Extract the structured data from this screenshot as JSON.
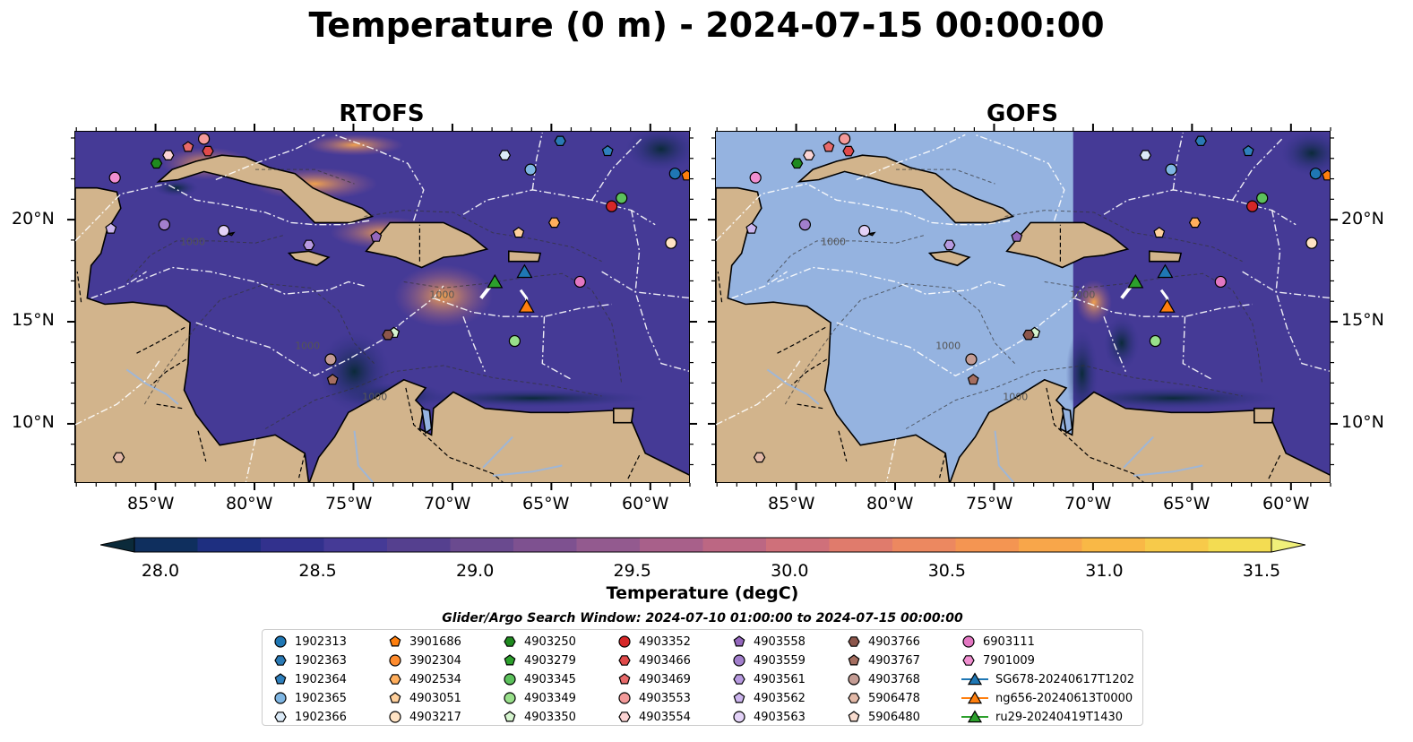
{
  "title": "Temperature (0 m) - 2024-07-15 00:00:00",
  "panels": [
    {
      "title": "RTOFS"
    },
    {
      "title": "GOFS"
    }
  ],
  "axes": {
    "lon_ticks": [
      "85°W",
      "80°W",
      "75°W",
      "70°W",
      "65°W",
      "60°W"
    ],
    "lat_ticks": [
      "20°N",
      "15°N",
      "10°N"
    ]
  },
  "colorbar": {
    "label": "Temperature (degC)",
    "tick_labels": [
      "28.0",
      "28.5",
      "29.0",
      "29.5",
      "30.0",
      "30.5",
      "31.0",
      "31.5"
    ],
    "range": [
      28.0,
      31.5
    ],
    "extend": "both",
    "colors": [
      "#0b2a3a",
      "#0f2f5e",
      "#1e2f80",
      "#32318d",
      "#453a96",
      "#55408f",
      "#6a4a8f",
      "#7e5190",
      "#935a8f",
      "#a8608a",
      "#bc6783",
      "#cf707a",
      "#e07b6c",
      "#ec8860",
      "#f49552",
      "#f8a64a",
      "#f9b846",
      "#f7ca4a",
      "#f3dc52",
      "#f0f07a"
    ]
  },
  "search_window": "Glider/Argo Search Window: 2024-07-10 01:00:00 to 2024-07-15 00:00:00",
  "land_color": "#d2b48c",
  "gofs_nodata_color": "#95b3e0",
  "contours": [
    "1000",
    "1000",
    "1000",
    "1000"
  ],
  "legend": [
    {
      "label": "1902313",
      "marker": "circle",
      "color": "#1f77b4"
    },
    {
      "label": "1902363",
      "marker": "hexagon",
      "color": "#2a7ab5"
    },
    {
      "label": "1902364",
      "marker": "pentagon",
      "color": "#2f80bd"
    },
    {
      "label": "1902365",
      "marker": "circle",
      "color": "#7fb6e3"
    },
    {
      "label": "1902366",
      "marker": "hexagon",
      "color": "#dbeaf7"
    },
    {
      "label": "3901686",
      "marker": "pentagon",
      "color": "#ff7f0e"
    },
    {
      "label": "3902304",
      "marker": "circle",
      "color": "#ff8c2e"
    },
    {
      "label": "4902534",
      "marker": "hexagon",
      "color": "#ffae5c"
    },
    {
      "label": "4903051",
      "marker": "pentagon",
      "color": "#ffd09c"
    },
    {
      "label": "4903217",
      "marker": "circle",
      "color": "#ffe3c4"
    },
    {
      "label": "4903250",
      "marker": "hexagon",
      "color": "#1f8a1f"
    },
    {
      "label": "4903279",
      "marker": "pentagon",
      "color": "#2ca02c"
    },
    {
      "label": "4903345",
      "marker": "circle",
      "color": "#5cc15c"
    },
    {
      "label": "4903349",
      "marker": "circle",
      "color": "#98df8a"
    },
    {
      "label": "4903350",
      "marker": "pentagon",
      "color": "#d6f5cf"
    },
    {
      "label": "4903352",
      "marker": "circle",
      "color": "#d62728"
    },
    {
      "label": "4903466",
      "marker": "hexagon",
      "color": "#e04a4a"
    },
    {
      "label": "4903469",
      "marker": "pentagon",
      "color": "#e86a6a"
    },
    {
      "label": "4903553",
      "marker": "circle",
      "color": "#f39a9a"
    },
    {
      "label": "4903554",
      "marker": "hexagon",
      "color": "#fbd4d4"
    },
    {
      "label": "4903558",
      "marker": "pentagon",
      "color": "#9467bd"
    },
    {
      "label": "4903559",
      "marker": "circle",
      "color": "#a27fcc"
    },
    {
      "label": "4903561",
      "marker": "hexagon",
      "color": "#b79ae0"
    },
    {
      "label": "4903562",
      "marker": "pentagon",
      "color": "#ccb5ee"
    },
    {
      "label": "4903563",
      "marker": "circle",
      "color": "#e3d2f7"
    },
    {
      "label": "4903766",
      "marker": "hexagon",
      "color": "#8c564b"
    },
    {
      "label": "4903767",
      "marker": "pentagon",
      "color": "#a56e60"
    },
    {
      "label": "4903768",
      "marker": "circle",
      "color": "#c49c94"
    },
    {
      "label": "5906478",
      "marker": "hexagon",
      "color": "#e3b9a8"
    },
    {
      "label": "5906480",
      "marker": "pentagon",
      "color": "#f8dccf"
    },
    {
      "label": "6903111",
      "marker": "circle",
      "color": "#e377c2"
    },
    {
      "label": "7901009",
      "marker": "hexagon",
      "color": "#f08fd0"
    },
    {
      "label": "SG678-20240617T1202",
      "marker": "triangle-line",
      "color": "#1f77b4"
    },
    {
      "label": "ng656-20240613T0000",
      "marker": "triangle-line",
      "color": "#ff7f0e"
    },
    {
      "label": "ru29-20240419T1430",
      "marker": "triangle-line",
      "color": "#2ca02c"
    }
  ],
  "markers_on_map": [
    {
      "lon": -85.0,
      "lat": 22.8,
      "marker": "hexagon",
      "color": "#1f8a1f"
    },
    {
      "lon": -84.4,
      "lat": 23.2,
      "marker": "hexagon",
      "color": "#fbd4d4"
    },
    {
      "lon": -83.4,
      "lat": 23.6,
      "marker": "pentagon",
      "color": "#e86a6a"
    },
    {
      "lon": -82.6,
      "lat": 24.0,
      "marker": "circle",
      "color": "#f39a9a"
    },
    {
      "lon": -82.4,
      "lat": 23.4,
      "marker": "hexagon",
      "color": "#e04a4a"
    },
    {
      "lon": -87.1,
      "lat": 22.1,
      "marker": "circle",
      "color": "#f08fd0"
    },
    {
      "lon": -84.6,
      "lat": 19.8,
      "marker": "circle",
      "color": "#a27fcc"
    },
    {
      "lon": -87.3,
      "lat": 19.6,
      "marker": "pentagon",
      "color": "#ccb5ee"
    },
    {
      "lon": -81.6,
      "lat": 19.5,
      "marker": "circle",
      "color": "#e3d2f7"
    },
    {
      "lon": -77.3,
      "lat": 18.8,
      "marker": "hexagon",
      "color": "#b79ae0"
    },
    {
      "lon": -73.9,
      "lat": 19.2,
      "marker": "pentagon",
      "color": "#9467bd"
    },
    {
      "lon": -67.4,
      "lat": 23.2,
      "marker": "hexagon",
      "color": "#dbeaf7"
    },
    {
      "lon": -66.1,
      "lat": 22.5,
      "marker": "circle",
      "color": "#7fb6e3"
    },
    {
      "lon": -64.6,
      "lat": 23.9,
      "marker": "hexagon",
      "color": "#2a7ab5"
    },
    {
      "lon": -62.2,
      "lat": 23.4,
      "marker": "pentagon",
      "color": "#2f80bd"
    },
    {
      "lon": -58.8,
      "lat": 22.3,
      "marker": "circle",
      "color": "#1f77b4"
    },
    {
      "lon": -58.2,
      "lat": 22.2,
      "marker": "pentagon",
      "color": "#ff7f0e"
    },
    {
      "lon": -61.5,
      "lat": 21.1,
      "marker": "circle",
      "color": "#5cc15c"
    },
    {
      "lon": -62.0,
      "lat": 20.7,
      "marker": "circle",
      "color": "#d62728"
    },
    {
      "lon": -64.9,
      "lat": 19.9,
      "marker": "hexagon",
      "color": "#ffae5c"
    },
    {
      "lon": -66.7,
      "lat": 19.4,
      "marker": "pentagon",
      "color": "#ffd09c"
    },
    {
      "lon": -59.0,
      "lat": 18.9,
      "marker": "circle",
      "color": "#ffe3c4"
    },
    {
      "lon": -63.6,
      "lat": 17.0,
      "marker": "circle",
      "color": "#e377c2"
    },
    {
      "lon": -66.9,
      "lat": 14.1,
      "marker": "circle",
      "color": "#98df8a"
    },
    {
      "lon": -73.0,
      "lat": 14.5,
      "marker": "pentagon",
      "color": "#d6f5cf"
    },
    {
      "lon": -73.3,
      "lat": 14.4,
      "marker": "hexagon",
      "color": "#8c564b"
    },
    {
      "lon": -76.2,
      "lat": 13.2,
      "marker": "circle",
      "color": "#c49c94"
    },
    {
      "lon": -76.1,
      "lat": 12.2,
      "marker": "pentagon",
      "color": "#a56e60"
    },
    {
      "lon": -86.9,
      "lat": 8.4,
      "marker": "hexagon",
      "color": "#e3b9a8"
    }
  ],
  "gliders_on_map": [
    {
      "lon": -66.4,
      "lat": 17.5,
      "color": "#1f77b4"
    },
    {
      "lon": -66.3,
      "lat": 15.8,
      "color": "#ff7f0e"
    },
    {
      "lon": -67.9,
      "lat": 17.0,
      "color": "#2ca02c"
    }
  ]
}
